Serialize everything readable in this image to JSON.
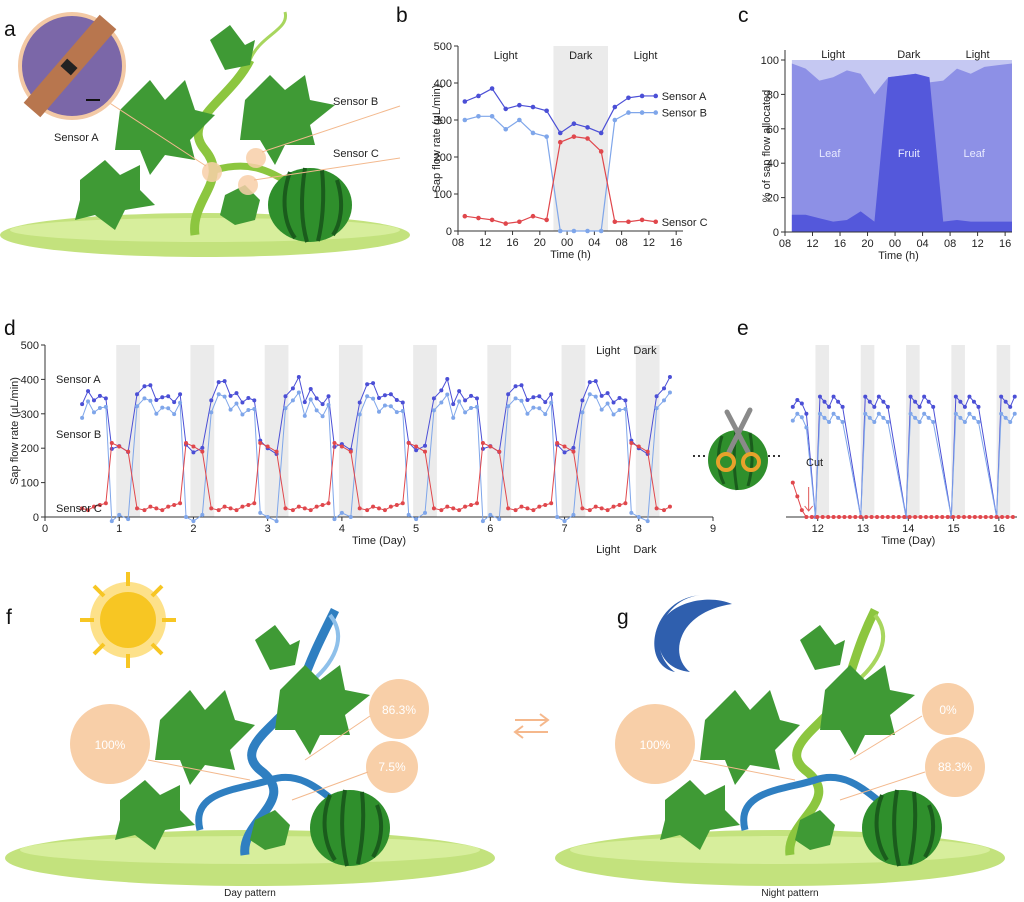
{
  "panels": {
    "a": {
      "letter": "a",
      "labels": {
        "sensor_a": "Sensor A",
        "sensor_b": "Sensor B",
        "sensor_c": "Sensor C"
      }
    },
    "f": {
      "letter": "f",
      "caption": "Day pattern",
      "bubbles": {
        "root": "100%",
        "leaf": "86.3%",
        "fruit": "7.5%"
      }
    },
    "g": {
      "letter": "g",
      "caption": "Night pattern",
      "bubbles": {
        "root": "100%",
        "leaf": "0%",
        "fruit": "88.3%"
      }
    }
  },
  "colors": {
    "sensor_a": "#4b4fd6",
    "sensor_b": "#7fa6ea",
    "sensor_c": "#e0474c",
    "dark_band": "#ebebeb",
    "leaf_green": "#3f9a35",
    "ground": "#bfe07a",
    "bubble": "#f8cfa8",
    "sun": "#f7c623",
    "moon": "#2f5fae",
    "stream_blue": "#2f7fc1"
  },
  "chart_data": [
    {
      "id": "b",
      "type": "line",
      "letter": "b",
      "xlabel": "Time (h)",
      "ylabel": "Sap flow rate (μL/min)",
      "ylim": [
        0,
        500
      ],
      "yticks": [
        0,
        100,
        200,
        300,
        400,
        500
      ],
      "xticks": [
        "08",
        "12",
        "16",
        "20",
        "00",
        "04",
        "08",
        "12",
        "16"
      ],
      "xrange_hours": [
        8,
        41
      ],
      "dark_period": [
        22,
        30
      ],
      "annotations": [
        "Light",
        "Dark",
        "Light"
      ],
      "series": [
        {
          "name": "Sensor A",
          "x": [
            9,
            11,
            13,
            15,
            17,
            19,
            21,
            23,
            25,
            27,
            29,
            31,
            33,
            35,
            37
          ],
          "y": [
            350,
            365,
            385,
            330,
            340,
            335,
            325,
            265,
            290,
            280,
            265,
            335,
            360,
            365,
            365
          ]
        },
        {
          "name": "Sensor B",
          "x": [
            9,
            11,
            13,
            15,
            17,
            19,
            21,
            23,
            25,
            27,
            29,
            31,
            33,
            35,
            37
          ],
          "y": [
            300,
            310,
            310,
            275,
            300,
            265,
            255,
            0,
            0,
            0,
            0,
            300,
            320,
            320,
            320
          ]
        },
        {
          "name": "Sensor C",
          "x": [
            9,
            11,
            13,
            15,
            17,
            19,
            21,
            23,
            25,
            27,
            29,
            31,
            33,
            35,
            37
          ],
          "y": [
            40,
            35,
            30,
            20,
            25,
            40,
            30,
            240,
            255,
            250,
            215,
            25,
            25,
            30,
            25
          ]
        }
      ]
    },
    {
      "id": "c",
      "type": "area",
      "letter": "c",
      "xlabel": "Time (h)",
      "ylabel": "% of sap flow allocated",
      "ylim": [
        0,
        100
      ],
      "yticks": [
        0,
        20,
        40,
        60,
        80,
        100
      ],
      "xticks": [
        "08",
        "12",
        "16",
        "20",
        "00",
        "04",
        "08",
        "12",
        "16"
      ],
      "xrange_hours": [
        8,
        41
      ],
      "annotations": [
        "Light",
        "Dark",
        "Light"
      ],
      "regions": [
        "Leaf",
        "Fruit",
        "Leaf"
      ],
      "x": [
        9,
        11,
        13,
        15,
        17,
        19,
        21,
        23,
        25,
        27,
        29,
        31,
        33,
        35,
        37,
        39,
        41
      ],
      "fruit": [
        10,
        10,
        8,
        6,
        7,
        12,
        6,
        90,
        91,
        92,
        90,
        6,
        7,
        6,
        6,
        6,
        6
      ],
      "leaf_plus_fruit": [
        98,
        95,
        88,
        90,
        94,
        92,
        80,
        90,
        91,
        92,
        87,
        88,
        95,
        92,
        96,
        97,
        98
      ]
    },
    {
      "id": "d",
      "type": "line",
      "letter": "d",
      "xlabel": "Time (Day)",
      "ylabel": "Sap flow rate (μL/min)",
      "ylim": [
        0,
        500
      ],
      "yticks": [
        0,
        100,
        200,
        300,
        400,
        500
      ],
      "xlim": [
        0,
        9
      ],
      "xticks": [
        0,
        1,
        2,
        3,
        4,
        5,
        6,
        7,
        8,
        9
      ],
      "annotations": {
        "top_light": "Light",
        "top_dark": "Dark",
        "bottom_light": "Light",
        "bottom_dark": "Dark"
      },
      "series_labels": [
        "Sensor A",
        "Sensor B",
        "Sensor C"
      ],
      "dark_start": [
        0.96,
        1.96,
        2.96,
        3.96,
        4.96,
        5.96,
        6.96,
        7.96
      ],
      "dark_width": 0.32,
      "day_offsets": [
        0.5,
        0.58,
        0.66,
        0.74,
        0.82,
        0.9,
        1.0,
        1.12,
        1.24,
        1.34,
        1.42
      ],
      "pattern_a": [
        340,
        360,
        345,
        340,
        345,
        210,
        200,
        195,
        345,
        380,
        395
      ],
      "pattern_b": [
        300,
        330,
        310,
        305,
        320,
        200,
        190,
        185,
        310,
        345,
        350
      ],
      "pattern_c": [
        25,
        20,
        30,
        35,
        40,
        215,
        205,
        190,
        25,
        20,
        30
      ],
      "sensor_c_dark_offsets": [
        1.12,
        1.24
      ],
      "end_day": 8.75
    },
    {
      "id": "e",
      "type": "line",
      "letter": "e",
      "xlabel": "Time (Day)",
      "xticks": [
        12,
        13,
        14,
        15,
        16
      ],
      "xlim": [
        11.3,
        16.4
      ],
      "ylim": [
        0,
        500
      ],
      "cut_day": 11.8,
      "annotation": "Cut",
      "dark_start": [
        11.95,
        12.95,
        13.95,
        14.95,
        15.95
      ],
      "dark_width": 0.3,
      "day_before_cut_a": [
        320,
        340,
        330,
        300
      ],
      "day_before_cut_b": [
        280,
        300,
        290,
        260
      ]
    }
  ]
}
